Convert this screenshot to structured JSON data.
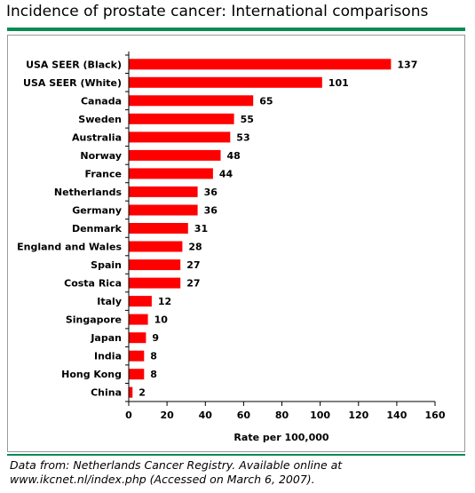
{
  "title": "Incidence of prostate cancer: International comparisons",
  "source": {
    "line1": "Data from: Netherlands Cancer Registry. Available online at",
    "line2": "www.ikcnet.nl/index.php (Accessed on March 6, 2007)."
  },
  "colors": {
    "bar": "#ff0000",
    "rule": "#0a8a55",
    "text": "#000000"
  },
  "chart_data": {
    "type": "bar",
    "orientation": "horizontal",
    "title": "Incidence of prostate cancer: International comparisons",
    "xlabel": "Rate per 100,000",
    "ylabel": "",
    "xlim": [
      0,
      160
    ],
    "xticks": [
      0,
      20,
      40,
      60,
      80,
      100,
      120,
      140,
      160
    ],
    "grid": false,
    "categories": [
      "USA SEER (Black)",
      "USA SEER (White)",
      "Canada",
      "Sweden",
      "Australia",
      "Norway",
      "France",
      "Netherlands",
      "Germany",
      "Denmark",
      "England and Wales",
      "Spain",
      "Costa Rica",
      "Italy",
      "Singapore",
      "Japan",
      "India",
      "Hong Kong",
      "China"
    ],
    "values": [
      137,
      101,
      65,
      55,
      53,
      48,
      44,
      36,
      36,
      31,
      28,
      27,
      27,
      12,
      10,
      9,
      8,
      8,
      2
    ]
  }
}
